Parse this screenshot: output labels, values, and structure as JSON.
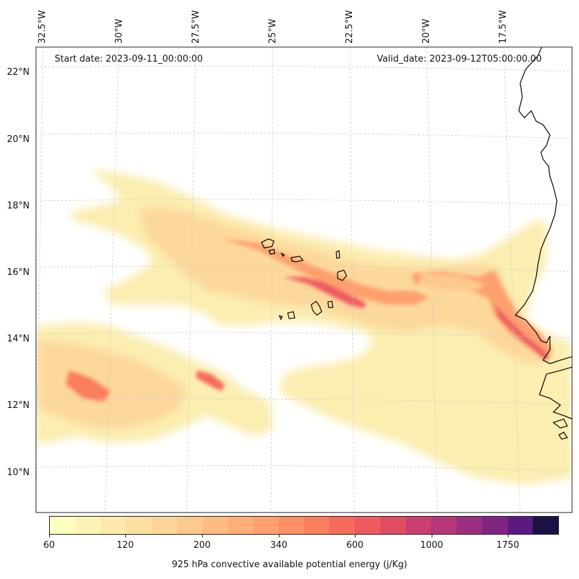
{
  "annotations": {
    "start_date": "Start date: 2023-09-11_00:00:00",
    "valid_date": "Valid_date: 2023-09-12T05:00:00.00"
  },
  "longitude_labels": [
    "32.5°W",
    "30°W",
    "27.5°W",
    "25°W",
    "22.5°W",
    "20°W",
    "17.5°W"
  ],
  "latitude_labels": [
    "22°N",
    "20°N",
    "18°N",
    "16°N",
    "14°N",
    "12°N",
    "10°N"
  ],
  "colorbar": {
    "label": "925 hPa convective available potential energy (j/Kg)",
    "tick_labels": [
      "60",
      "120",
      "200",
      "340",
      "600",
      "1000",
      "1750"
    ],
    "colors": [
      "#fcfdbf",
      "#fcf3b5",
      "#fde9ab",
      "#fedfa2",
      "#fed598",
      "#fec98d",
      "#febc83",
      "#feaf78",
      "#fea06e",
      "#fd9065",
      "#fb7e5d",
      "#f66b5c",
      "#ee5a5e",
      "#e04c62",
      "#cb3e70",
      "#b5367a",
      "#9b2e7f",
      "#7f2582",
      "#5c1a80",
      "#1c1144"
    ]
  },
  "legend_name": "CAPE field (925 hPa)"
}
